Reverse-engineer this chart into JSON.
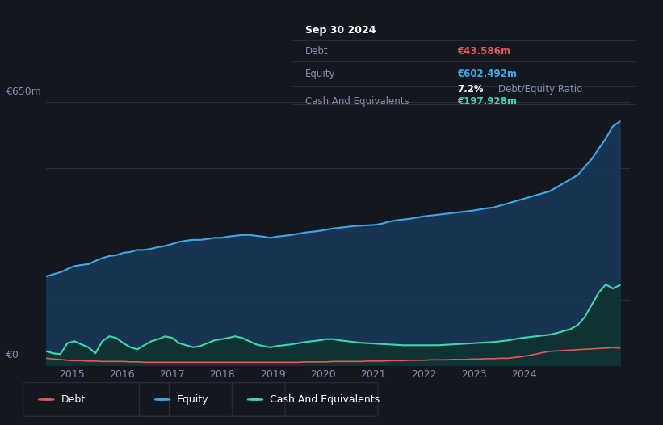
{
  "background_color": "#13171f",
  "plot_bg_color": "#13171f",
  "grid_color": "#2a2e3a",
  "title_box": {
    "date": "Sep 30 2024",
    "debt_label": "Debt",
    "debt_value": "€43.586m",
    "equity_label": "Equity",
    "equity_value": "€602.492m",
    "ratio_value": "7.2%",
    "ratio_label": "Debt/Equity Ratio",
    "cash_label": "Cash And Equivalents",
    "cash_value": "€197.928m"
  },
  "ylabel_top": "€650m",
  "ylabel_bottom": "€0",
  "x_tick_labels": [
    "2015",
    "2016",
    "2017",
    "2018",
    "2019",
    "2020",
    "2021",
    "2022",
    "2023",
    "2024"
  ],
  "legend": [
    {
      "label": "Debt",
      "color": "#e05a5a"
    },
    {
      "label": "Equity",
      "color": "#3ea8e5"
    },
    {
      "label": "Cash And Equivalents",
      "color": "#3ed8b0"
    }
  ],
  "equity_color": "#3ea8e5",
  "debt_color": "#e05a5a",
  "cash_color": "#3ed8b0",
  "equity_fill_color": "#1a3a5c",
  "cash_fill_color": "#0e3330",
  "ylim": [
    0,
    650
  ],
  "equity_data": [
    220,
    225,
    230,
    238,
    245,
    248,
    250,
    258,
    265,
    270,
    272,
    278,
    280,
    285,
    285,
    288,
    292,
    295,
    300,
    305,
    308,
    310,
    310,
    312,
    315,
    315,
    318,
    320,
    322,
    322,
    320,
    318,
    315,
    318,
    320,
    322,
    325,
    328,
    330,
    332,
    335,
    338,
    340,
    342,
    344,
    345,
    346,
    347,
    350,
    355,
    358,
    360,
    362,
    365,
    368,
    370,
    372,
    374,
    376,
    378,
    380,
    382,
    385,
    388,
    390,
    395,
    400,
    405,
    410,
    415,
    420,
    425,
    430,
    440,
    450,
    460,
    470,
    490,
    510,
    535,
    560,
    590,
    602
  ],
  "debt_data": [
    18,
    16,
    15,
    13,
    12,
    12,
    11,
    11,
    10,
    10,
    10,
    10,
    9,
    9,
    8,
    8,
    8,
    8,
    8,
    8,
    8,
    8,
    8,
    8,
    8,
    8,
    8,
    8,
    8,
    8,
    8,
    8,
    8,
    8,
    8,
    8,
    8,
    9,
    9,
    9,
    9,
    10,
    10,
    10,
    10,
    10,
    11,
    11,
    11,
    12,
    12,
    12,
    13,
    13,
    13,
    14,
    14,
    14,
    15,
    15,
    15,
    16,
    16,
    17,
    17,
    18,
    18,
    20,
    22,
    25,
    28,
    32,
    35,
    36,
    37,
    38,
    39,
    40,
    41,
    42,
    43,
    44,
    43
  ],
  "cash_data": [
    35,
    30,
    28,
    55,
    60,
    52,
    45,
    30,
    60,
    72,
    68,
    55,
    45,
    40,
    50,
    60,
    65,
    72,
    68,
    55,
    50,
    45,
    48,
    55,
    62,
    65,
    68,
    72,
    68,
    60,
    52,
    48,
    45,
    48,
    50,
    52,
    55,
    58,
    60,
    62,
    65,
    65,
    62,
    60,
    58,
    56,
    55,
    54,
    53,
    52,
    51,
    50,
    50,
    50,
    50,
    50,
    50,
    51,
    52,
    53,
    54,
    55,
    56,
    57,
    58,
    60,
    62,
    65,
    68,
    70,
    72,
    74,
    76,
    80,
    85,
    90,
    100,
    120,
    150,
    180,
    200,
    190,
    198
  ]
}
